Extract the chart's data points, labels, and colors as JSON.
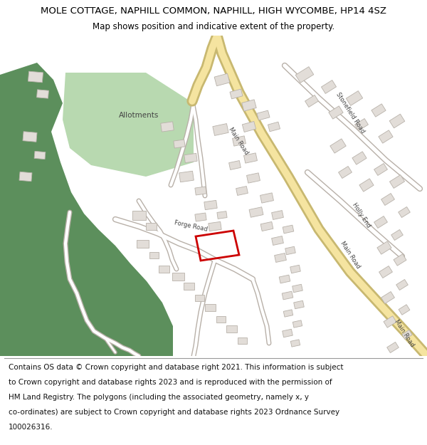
{
  "title": "MOLE COTTAGE, NAPHILL COMMON, NAPHILL, HIGH WYCOMBE, HP14 4SZ",
  "subtitle": "Map shows position and indicative extent of the property.",
  "footer_lines": [
    "Contains OS data © Crown copyright and database right 2021. This information is subject",
    "to Crown copyright and database rights 2023 and is reproduced with the permission of",
    "HM Land Registry. The polygons (including the associated geometry, namely x, y",
    "co-ordinates) are subject to Crown copyright and database rights 2023 Ordnance Survey",
    "100026316."
  ],
  "bg_color": "#ffffff",
  "map_bg": "#f5f2ee",
  "green_dark": "#5c8f5c",
  "green_light": "#b8d9b0",
  "road_main_color": "#f5e4a0",
  "road_main_border": "#c8b870",
  "road_minor_color": "#ffffff",
  "road_minor_border": "#b8b0a8",
  "building_fill": "#e2ddd8",
  "building_stroke": "#b8b2aa",
  "red_polygon": "#cc0000",
  "title_fontsize": 9.5,
  "subtitle_fontsize": 8.5,
  "footer_fontsize": 7.5,
  "map_label_fontsize": 6.0
}
